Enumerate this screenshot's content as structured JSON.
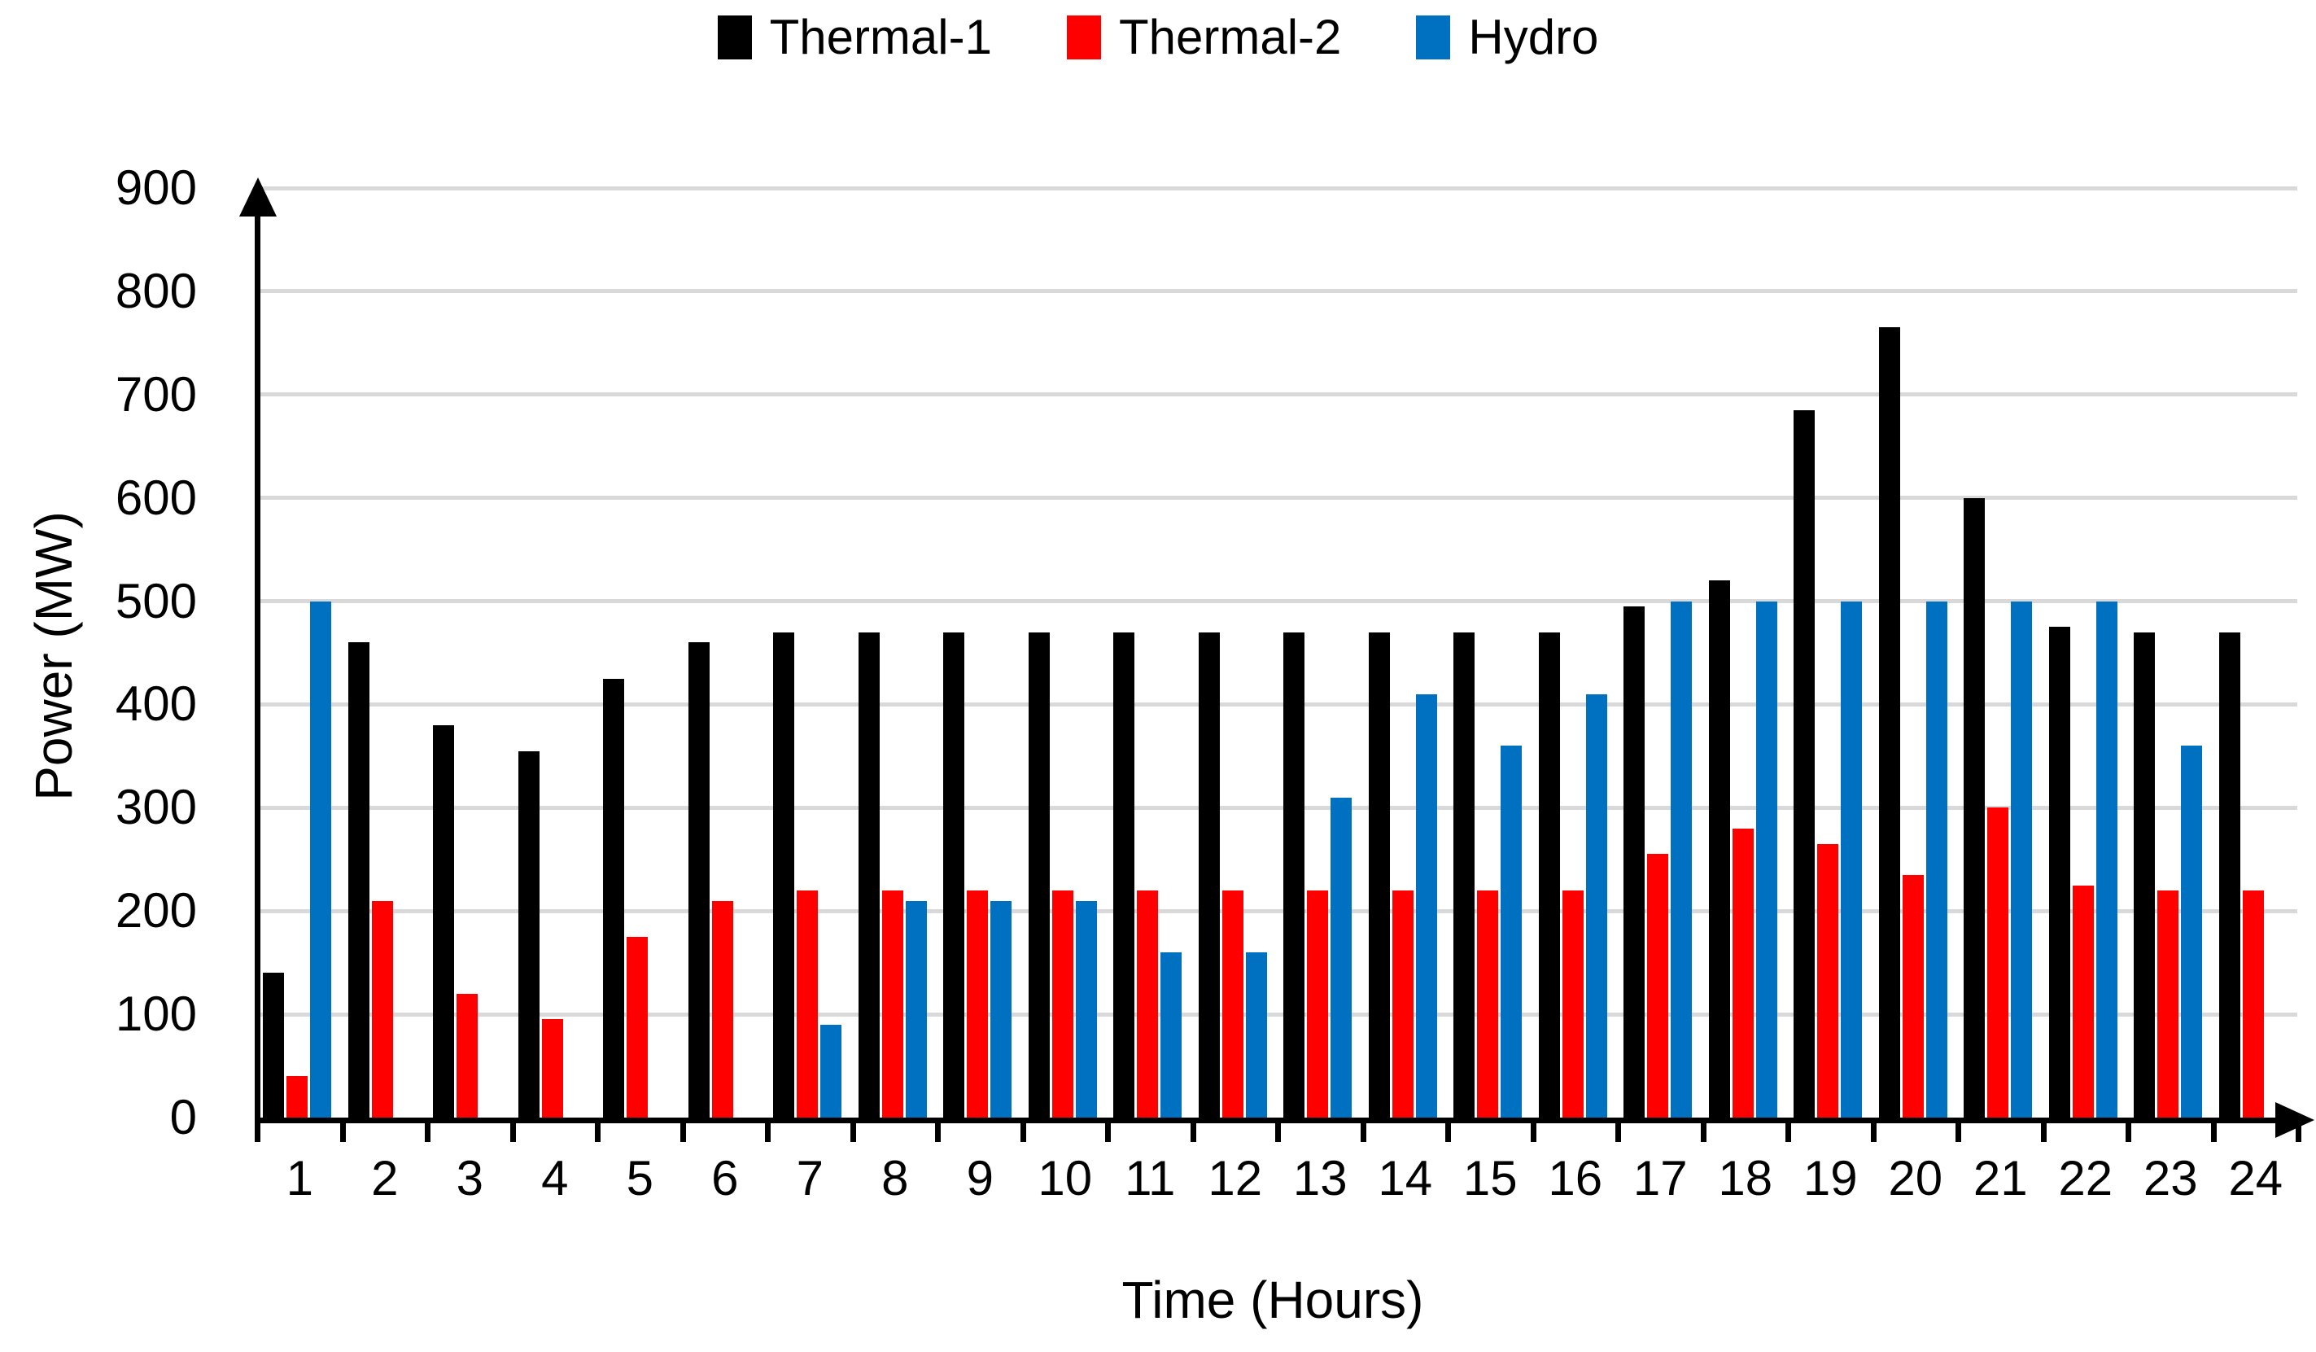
{
  "chart_data": {
    "type": "bar",
    "title": "",
    "xlabel": "Time (Hours)",
    "ylabel": "Power (MW)",
    "categories": [
      1,
      2,
      3,
      4,
      5,
      6,
      7,
      8,
      9,
      10,
      11,
      12,
      13,
      14,
      15,
      16,
      17,
      18,
      19,
      20,
      21,
      22,
      23,
      24
    ],
    "series": [
      {
        "name": "Thermal-1",
        "color": "#000000",
        "values": [
          140,
          460,
          380,
          355,
          425,
          460,
          470,
          470,
          470,
          470,
          470,
          470,
          470,
          470,
          470,
          470,
          495,
          520,
          685,
          765,
          600,
          475,
          470,
          470
        ]
      },
      {
        "name": "Thermal-2",
        "color": "#FF0000",
        "values": [
          40,
          210,
          120,
          95,
          175,
          210,
          220,
          220,
          220,
          220,
          220,
          220,
          220,
          220,
          220,
          220,
          255,
          280,
          265,
          235,
          300,
          225,
          220,
          220
        ]
      },
      {
        "name": "Hydro",
        "color": "#0070C0",
        "values": [
          500,
          0,
          0,
          0,
          0,
          0,
          90,
          210,
          210,
          210,
          160,
          160,
          310,
          410,
          360,
          410,
          500,
          500,
          500,
          500,
          500,
          500,
          360,
          0
        ]
      }
    ],
    "ylim": [
      0,
      900
    ],
    "yticks": [
      0,
      100,
      200,
      300,
      400,
      500,
      600,
      700,
      800,
      900
    ],
    "grid": true,
    "legend_position": "top-center",
    "axis_color": "#000000",
    "gridline_color": "#D9D9D9",
    "background": "#FFFFFF"
  }
}
